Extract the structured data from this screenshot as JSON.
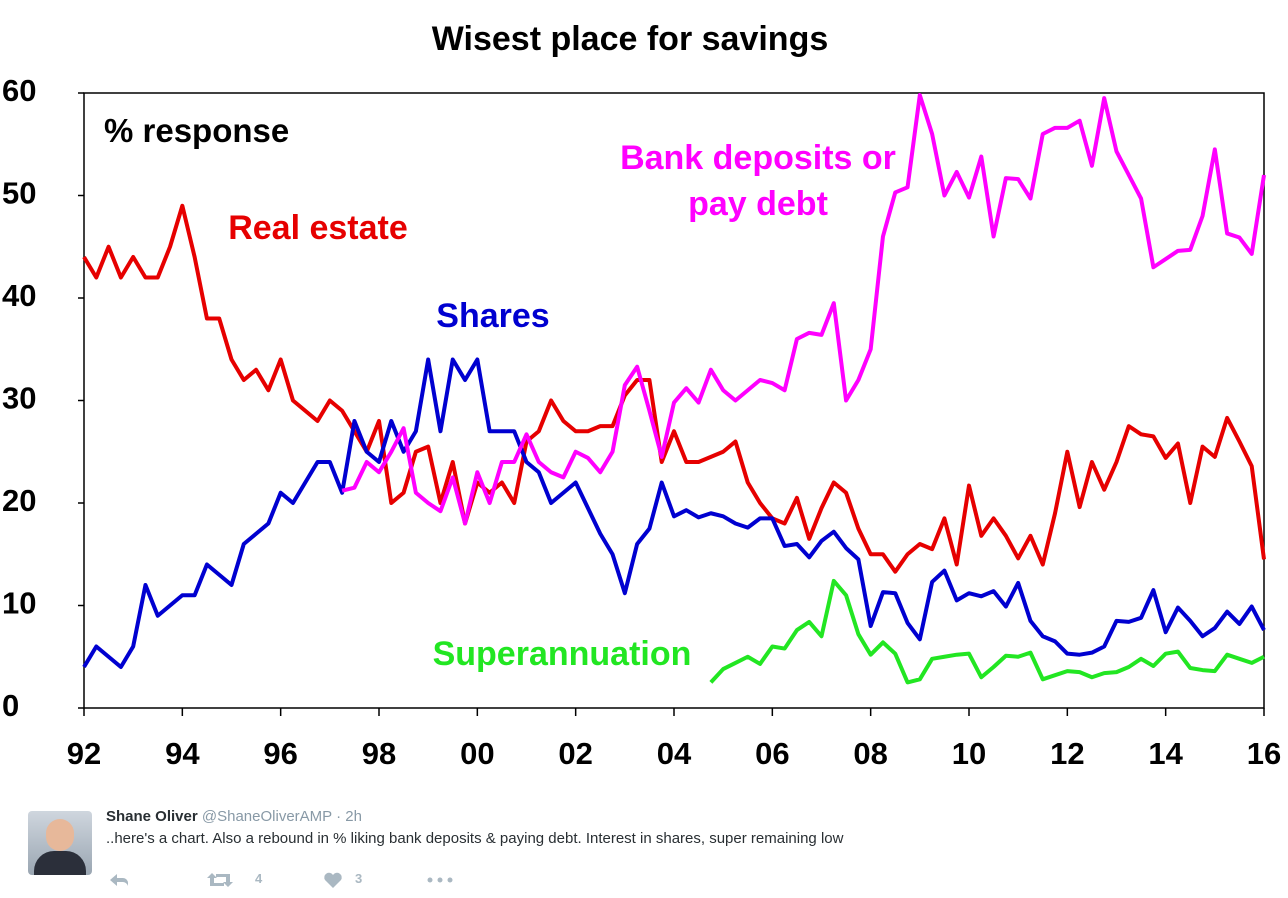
{
  "chart_data": {
    "type": "line",
    "title": "Wisest place for savings",
    "annotation": "% response",
    "x": [
      1992,
      1992.25,
      1992.5,
      1992.75,
      1993,
      1993.25,
      1993.5,
      1993.75,
      1994,
      1994.25,
      1994.5,
      1994.75,
      1995,
      1995.25,
      1995.5,
      1995.75,
      1996,
      1996.25,
      1996.5,
      1996.75,
      1997,
      1997.25,
      1997.5,
      1997.75,
      1998,
      1998.25,
      1998.5,
      1998.75,
      1999,
      1999.25,
      1999.5,
      1999.75,
      2000,
      2000.25,
      2000.5,
      2000.75,
      2001,
      2001.25,
      2001.5,
      2001.75,
      2002,
      2002.25,
      2002.5,
      2002.75,
      2003,
      2003.25,
      2003.5,
      2003.75,
      2004,
      2004.25,
      2004.5,
      2004.75,
      2005,
      2005.25,
      2005.5,
      2005.75,
      2006,
      2006.25,
      2006.5,
      2006.75,
      2007,
      2007.25,
      2007.5,
      2007.75,
      2008,
      2008.25,
      2008.5,
      2008.75,
      2009,
      2009.25,
      2009.5,
      2009.75,
      2010,
      2010.25,
      2010.5,
      2010.75,
      2011,
      2011.25,
      2011.5,
      2011.75,
      2012,
      2012.25,
      2012.5,
      2012.75,
      2013,
      2013.25,
      2013.5,
      2013.75,
      2014,
      2014.25,
      2014.5,
      2014.75,
      2015,
      2015.25,
      2015.5,
      2015.75,
      2016
    ],
    "series": [
      {
        "name": "Real estate",
        "color": "#e60000",
        "values": [
          44,
          42,
          45,
          42,
          44,
          42,
          42,
          45,
          49,
          44,
          38,
          38,
          34,
          32,
          33,
          31,
          34,
          30,
          29,
          28,
          30,
          29,
          27,
          25,
          28,
          20,
          21,
          25,
          25.5,
          20,
          24,
          18,
          22,
          21,
          22,
          20,
          26,
          27,
          30,
          28,
          27,
          27,
          27.5,
          27.5,
          30.5,
          32,
          32,
          24,
          27,
          24,
          24,
          24.5,
          25,
          26,
          22,
          20,
          18.5,
          18,
          20.5,
          16.5,
          19.5,
          22,
          21,
          17.5,
          15,
          15,
          13.3,
          15,
          16,
          15.5,
          18.5,
          14,
          21.7,
          16.8,
          18.5,
          16.8,
          14.6,
          16.8,
          14,
          19,
          25,
          19.6,
          24,
          21.3,
          24,
          27.5,
          26.7,
          26.5,
          24.4,
          25.8,
          20,
          25.5,
          24.5,
          28.3,
          26,
          23.6,
          14.5
        ]
      },
      {
        "name": "Shares",
        "color": "#0000d0",
        "values": [
          4,
          6,
          5,
          4,
          6,
          12,
          9,
          10,
          11,
          11,
          14,
          13,
          12,
          16,
          17,
          18,
          21,
          20,
          22,
          24,
          24,
          21,
          28,
          25,
          24,
          28,
          25,
          27,
          34,
          27,
          34,
          32,
          34,
          27,
          27,
          27,
          24,
          23,
          20,
          21,
          22,
          19.5,
          17,
          15,
          11.2,
          16,
          17.5,
          22,
          18.7,
          19.3,
          18.6,
          19,
          18.7,
          18,
          17.6,
          18.5,
          18.5,
          15.8,
          16,
          14.7,
          16.3,
          17.2,
          15.6,
          14.5,
          8,
          11.3,
          11.2,
          8.3,
          6.7,
          12.3,
          13.4,
          10.5,
          11.2,
          10.9,
          11.4,
          9.9,
          12.2,
          8.5,
          7,
          6.5,
          5.3,
          5.2,
          5.4,
          6,
          8.5,
          8.4,
          8.8,
          11.5,
          7.4,
          9.8,
          8.5,
          7,
          7.8,
          9.4,
          8.2,
          9.9,
          7.6
        ]
      },
      {
        "name": "Bank deposits or pay debt",
        "color": "#ff00ff",
        "values": [
          null,
          null,
          null,
          null,
          null,
          null,
          null,
          null,
          null,
          null,
          null,
          null,
          null,
          null,
          null,
          null,
          null,
          null,
          null,
          null,
          null,
          21.2,
          21.5,
          24,
          23,
          25,
          27.3,
          21,
          20,
          19.2,
          22.5,
          18,
          23,
          20,
          24,
          24,
          26.7,
          24,
          23,
          22.5,
          25,
          24.4,
          23,
          25,
          31.5,
          33.3,
          29,
          24.5,
          29.8,
          31.2,
          29.8,
          33,
          31,
          30,
          31,
          32,
          31.7,
          31,
          36,
          36.6,
          36.4,
          39.5,
          30,
          32,
          35,
          46,
          50.3,
          50.8,
          59.8,
          56,
          50,
          52.3,
          49.8,
          53.8,
          46,
          51.7,
          51.6,
          49.7,
          56,
          56.6,
          56.6,
          57.3,
          52.9,
          59.5,
          54.3,
          52,
          49.7,
          43,
          43.8,
          44.6,
          44.7,
          48,
          54.5,
          46.3,
          45.9,
          44.3,
          52
        ]
      },
      {
        "name": "Superannuation",
        "color": "#22e622",
        "values": [
          null,
          null,
          null,
          null,
          null,
          null,
          null,
          null,
          null,
          null,
          null,
          null,
          null,
          null,
          null,
          null,
          null,
          null,
          null,
          null,
          null,
          null,
          null,
          null,
          null,
          null,
          null,
          null,
          null,
          null,
          null,
          null,
          null,
          null,
          null,
          null,
          null,
          null,
          null,
          null,
          null,
          null,
          null,
          null,
          null,
          null,
          null,
          null,
          null,
          null,
          null,
          2.5,
          3.8,
          4.4,
          5,
          4.3,
          6,
          5.8,
          7.6,
          8.4,
          7,
          12.4,
          11,
          7.2,
          5.2,
          6.4,
          5.3,
          2.5,
          2.8,
          4.8,
          5,
          5.2,
          5.3,
          3,
          4,
          5.1,
          5,
          5.4,
          2.8,
          3.2,
          3.6,
          3.5,
          3,
          3.4,
          3.5,
          4,
          4.8,
          4.1,
          5.3,
          5.5,
          3.9,
          3.7,
          3.6,
          5.2,
          4.8,
          4.4,
          5
        ]
      }
    ],
    "xlim": [
      1992,
      2016
    ],
    "xticks": [
      {
        "value": 1992,
        "label": "92"
      },
      {
        "value": 1994,
        "label": "94"
      },
      {
        "value": 1996,
        "label": "96"
      },
      {
        "value": 1998,
        "label": "98"
      },
      {
        "value": 2000,
        "label": "00"
      },
      {
        "value": 2002,
        "label": "02"
      },
      {
        "value": 2004,
        "label": "04"
      },
      {
        "value": 2006,
        "label": "06"
      },
      {
        "value": 2008,
        "label": "08"
      },
      {
        "value": 2010,
        "label": "10"
      },
      {
        "value": 2012,
        "label": "12"
      },
      {
        "value": 2014,
        "label": "14"
      },
      {
        "value": 2016,
        "label": "16"
      }
    ],
    "ylim": [
      0,
      60
    ],
    "yticks": [
      0,
      10,
      20,
      30,
      40,
      50,
      60
    ],
    "grid": false
  },
  "tweet": {
    "author": "Shane Oliver",
    "handle": "@ShaneOliverAMP",
    "time": "· 2h",
    "text": "..here's a chart. Also a rebound in % liking bank deposits & paying debt. Interest in shares, super remaining low",
    "retweets": "4",
    "likes": "3"
  }
}
